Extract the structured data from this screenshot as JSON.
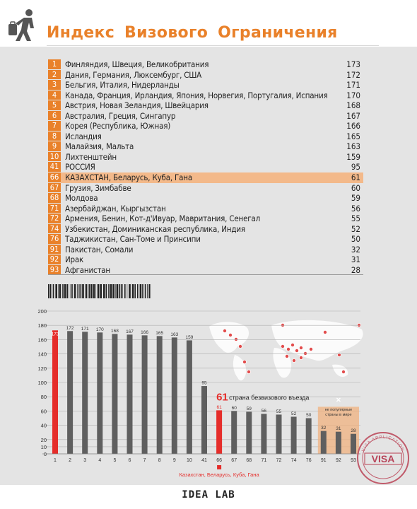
{
  "header": {
    "title": "Индекс Визового Ограничения",
    "logo_icon": "person-with-suitcase-icon"
  },
  "table": {
    "rows": [
      {
        "rank": "1",
        "name": "Финляндия, Швеция, Великобритания",
        "value": "173",
        "highlight": false
      },
      {
        "rank": "2",
        "name": "Дания, Германия, Люксембург, США",
        "value": "172",
        "highlight": false
      },
      {
        "rank": "3",
        "name": "Бельгия, Италия, Нидерланды",
        "value": "171",
        "highlight": false
      },
      {
        "rank": "4",
        "name": "Канада, Франция, Ирландия, Япония, Норвегия, Португалия, Испания",
        "value": "170",
        "highlight": false
      },
      {
        "rank": "5",
        "name": "Австрия, Новая Зеландия, Швейцария",
        "value": "168",
        "highlight": false
      },
      {
        "rank": "6",
        "name": "Австралия, Греция, Сингапур",
        "value": "167",
        "highlight": false
      },
      {
        "rank": "7",
        "name": "Корея (Республика, Южная)",
        "value": "166",
        "highlight": false
      },
      {
        "rank": "8",
        "name": "Исландия",
        "value": "165",
        "highlight": false
      },
      {
        "rank": "9",
        "name": "Малайзия, Мальта",
        "value": "163",
        "highlight": false
      },
      {
        "rank": "10",
        "name": "Лихтенштейн",
        "value": "159",
        "highlight": false
      },
      {
        "rank": "41",
        "name": "РОССИЯ",
        "value": "95",
        "highlight": false
      },
      {
        "rank": "66",
        "name": "КАЗАХСТАН, Беларусь, Куба, Гана",
        "value": "61",
        "highlight": true
      },
      {
        "rank": "67",
        "name": "Грузия, Зимбабве",
        "value": "60",
        "highlight": false
      },
      {
        "rank": "68",
        "name": "Молдова",
        "value": "59",
        "highlight": false
      },
      {
        "rank": "71",
        "name": "Азербайджан, Кыргызстан",
        "value": "56",
        "highlight": false
      },
      {
        "rank": "72",
        "name": "Армения, Бенин, Кот-д'Ивуар, Мавритания, Сенегал",
        "value": "55",
        "highlight": false
      },
      {
        "rank": "74",
        "name": "Узбекистан, Доминиканская республика, Индия",
        "value": "52",
        "highlight": false
      },
      {
        "rank": "76",
        "name": "Таджикистан, Сан-Томе и Принсипи",
        "value": "50",
        "highlight": false
      },
      {
        "rank": "91",
        "name": "Пакистан, Сомали",
        "value": "32",
        "highlight": false
      },
      {
        "rank": "92",
        "name": "Ирак",
        "value": "31",
        "highlight": false
      },
      {
        "rank": "93",
        "name": "Афганистан",
        "value": "28",
        "highlight": false
      }
    ]
  },
  "chart_data": {
    "type": "bar",
    "categories": [
      "1",
      "2",
      "3",
      "4",
      "5",
      "6",
      "7",
      "8",
      "9",
      "10",
      "41",
      "66",
      "67",
      "68",
      "71",
      "72",
      "74",
      "76",
      "91",
      "92",
      "93"
    ],
    "values": [
      173,
      172,
      171,
      170,
      168,
      167,
      166,
      165,
      163,
      159,
      95,
      61,
      60,
      59,
      56,
      55,
      52,
      50,
      32,
      31,
      28
    ],
    "highlighted_categories": [
      "1",
      "66"
    ],
    "yticks": [
      0,
      10,
      20,
      40,
      60,
      80,
      100,
      120,
      140,
      160,
      180,
      200
    ],
    "ylim": [
      0,
      200
    ],
    "grid": "horizontal",
    "annotation_value": "61",
    "annotation_text": "страна безвизового въезда",
    "bottom_label": "Казахстан, Беларусь, Куба, Гана",
    "unpopular_box_label": "не популярные страны в мире",
    "colors": {
      "bar": "#5f5f5f",
      "highlight": "#e52d2a",
      "box": "#f0b27f",
      "axis": "#b0b0b0"
    }
  },
  "stamp": {
    "text": "VISA",
    "ring_text": "VISA APPLICATION"
  },
  "footer": {
    "brand": "IDEA LAB"
  }
}
